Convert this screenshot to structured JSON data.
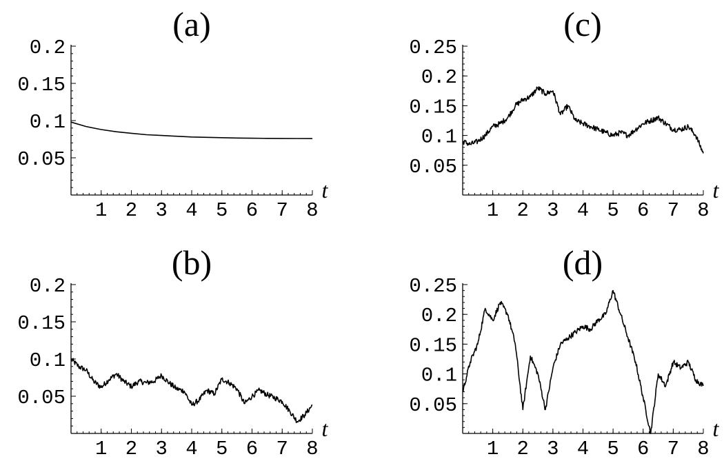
{
  "chart_data": [
    {
      "type": "line",
      "title": "(a)",
      "xlabel": "t",
      "ylabel": "",
      "xlim": [
        0,
        8
      ],
      "ylim": [
        0,
        0.2
      ],
      "grid": false,
      "x_ticks": [
        "1",
        "2",
        "3",
        "4",
        "5",
        "6",
        "7",
        "8"
      ],
      "y_ticks": [
        "0.05",
        "0.1",
        "0.15",
        "0.2"
      ],
      "series": [
        {
          "x": [
            0,
            0.5,
            1,
            1.5,
            2,
            2.5,
            3,
            3.5,
            4,
            4.5,
            5,
            5.5,
            6,
            6.5,
            7,
            7.5,
            8
          ],
          "y": [
            0.098,
            0.092,
            0.088,
            0.085,
            0.083,
            0.081,
            0.08,
            0.079,
            0.078,
            0.0775,
            0.077,
            0.0766,
            0.0763,
            0.0761,
            0.076,
            0.0759,
            0.0758
          ]
        }
      ]
    },
    {
      "type": "line",
      "title": "(b)",
      "xlabel": "t",
      "ylabel": "",
      "xlim": [
        0,
        8
      ],
      "ylim": [
        0,
        0.2
      ],
      "grid": false,
      "x_ticks": [
        "1",
        "2",
        "3",
        "4",
        "5",
        "6",
        "7",
        "8"
      ],
      "y_ticks": [
        "0.05",
        "0.1",
        "0.15",
        "0.2"
      ],
      "series": [
        {
          "x": [
            0,
            0.25,
            0.5,
            0.75,
            1,
            1.25,
            1.5,
            1.75,
            2,
            2.25,
            2.5,
            2.75,
            3,
            3.25,
            3.5,
            3.75,
            4,
            4.25,
            4.5,
            4.75,
            5,
            5.25,
            5.5,
            5.75,
            6,
            6.25,
            6.5,
            6.75,
            7,
            7.25,
            7.5,
            7.75,
            8
          ],
          "y": [
            0.1,
            0.09,
            0.085,
            0.07,
            0.062,
            0.072,
            0.08,
            0.07,
            0.063,
            0.07,
            0.068,
            0.07,
            0.078,
            0.068,
            0.06,
            0.057,
            0.038,
            0.045,
            0.058,
            0.053,
            0.073,
            0.068,
            0.06,
            0.04,
            0.05,
            0.058,
            0.052,
            0.048,
            0.043,
            0.03,
            0.016,
            0.025,
            0.038
          ]
        }
      ]
    },
    {
      "type": "line",
      "title": "(c)",
      "xlabel": "t",
      "ylabel": "",
      "xlim": [
        0,
        8
      ],
      "ylim": [
        0,
        0.25
      ],
      "grid": false,
      "x_ticks": [
        "1",
        "2",
        "3",
        "4",
        "5",
        "6",
        "7",
        "8"
      ],
      "y_ticks": [
        "0.05",
        "0.1",
        "0.15",
        "0.2",
        "0.25"
      ],
      "series": [
        {
          "x": [
            0,
            0.25,
            0.5,
            0.75,
            1,
            1.25,
            1.5,
            1.75,
            2,
            2.25,
            2.5,
            2.75,
            3,
            3.25,
            3.5,
            3.75,
            4,
            4.25,
            4.5,
            4.75,
            5,
            5.25,
            5.5,
            5.75,
            6,
            6.25,
            6.5,
            6.75,
            7,
            7.25,
            7.5,
            7.75,
            8
          ],
          "y": [
            0.09,
            0.085,
            0.09,
            0.1,
            0.115,
            0.12,
            0.13,
            0.15,
            0.16,
            0.165,
            0.18,
            0.17,
            0.175,
            0.135,
            0.15,
            0.125,
            0.12,
            0.115,
            0.11,
            0.105,
            0.1,
            0.105,
            0.1,
            0.11,
            0.12,
            0.125,
            0.13,
            0.12,
            0.11,
            0.11,
            0.115,
            0.1,
            0.07
          ]
        }
      ]
    },
    {
      "type": "line",
      "title": "(d)",
      "xlabel": "t",
      "ylabel": "",
      "xlim": [
        0,
        8
      ],
      "ylim": [
        0,
        0.25
      ],
      "grid": false,
      "x_ticks": [
        "1",
        "2",
        "3",
        "4",
        "5",
        "6",
        "7",
        "8"
      ],
      "y_ticks": [
        "0.05",
        "0.1",
        "0.15",
        "0.2",
        "0.25"
      ],
      "series": [
        {
          "x": [
            0,
            0.25,
            0.5,
            0.75,
            1,
            1.25,
            1.5,
            1.75,
            2,
            2.25,
            2.5,
            2.75,
            3,
            3.25,
            3.5,
            3.75,
            4,
            4.25,
            4.5,
            4.75,
            5,
            5.25,
            5.5,
            5.75,
            6,
            6.25,
            6.5,
            6.75,
            7,
            7.25,
            7.5,
            7.75,
            8
          ],
          "y": [
            0.07,
            0.12,
            0.15,
            0.21,
            0.19,
            0.22,
            0.2,
            0.15,
            0.04,
            0.13,
            0.1,
            0.04,
            0.11,
            0.15,
            0.16,
            0.17,
            0.18,
            0.175,
            0.19,
            0.2,
            0.24,
            0.2,
            0.16,
            0.12,
            0.06,
            0.0,
            0.1,
            0.08,
            0.12,
            0.11,
            0.12,
            0.09,
            0.08
          ]
        }
      ]
    }
  ]
}
